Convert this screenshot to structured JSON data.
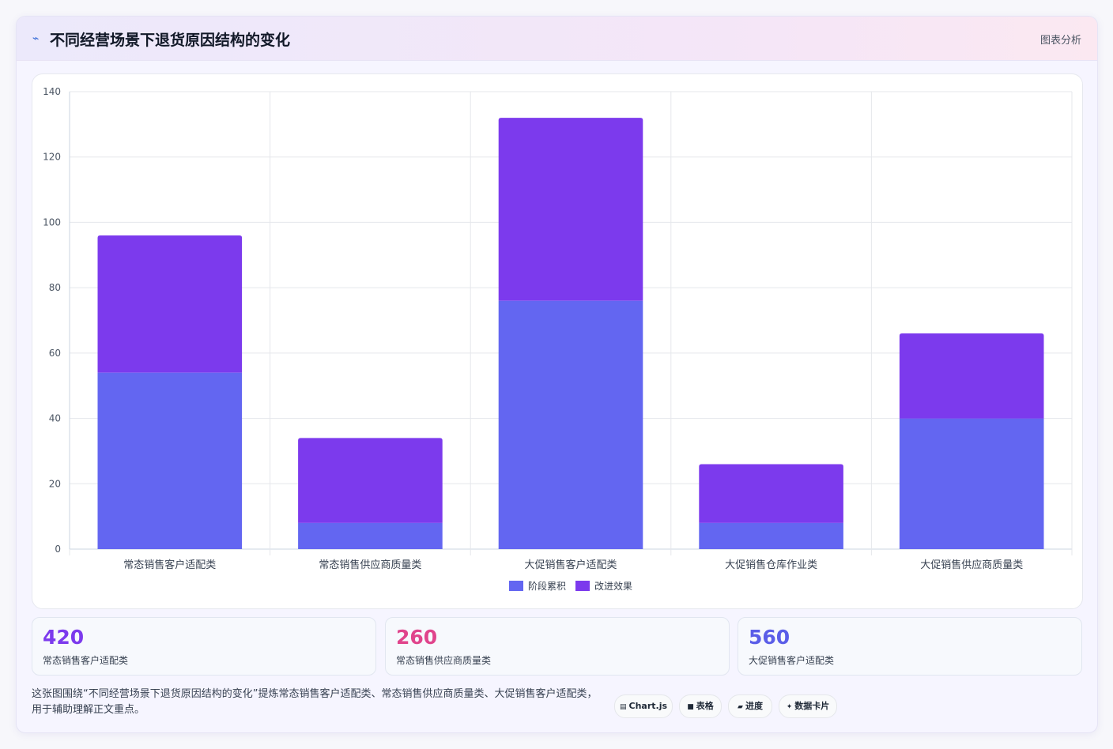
{
  "header": {
    "title": "不同经营场景下退货原因结构的变化",
    "icon": "chart-line-icon",
    "right_label": "图表分析"
  },
  "chart_data": {
    "type": "bar",
    "stacked": true,
    "categories": [
      "常态销售客户适配类",
      "常态销售供应商质量类",
      "大促销售客户适配类",
      "大促销售仓库作业类",
      "大促销售供应商质量类"
    ],
    "series": [
      {
        "name": "阶段累积",
        "color": "#6366f1",
        "values": [
          54,
          8,
          76,
          8,
          40
        ]
      },
      {
        "name": "改进效果",
        "color": "#7c3aed",
        "values": [
          42,
          26,
          56,
          18,
          26
        ]
      }
    ],
    "ylim": [
      0,
      140
    ],
    "yticks": [
      0,
      20,
      40,
      60,
      80,
      100,
      120,
      140
    ],
    "grid": true,
    "legend": "bottom"
  },
  "stats": [
    {
      "value": "420",
      "label": "常态销售客户适配类",
      "color": "#7c3aed"
    },
    {
      "value": "260",
      "label": "常态销售供应商质量类",
      "color": "#e0448c"
    },
    {
      "value": "560",
      "label": "大促销售客户适配类",
      "color": "#5b5ee8"
    }
  ],
  "footnote": "这张图围绕“不同经营场景下退货原因结构的变化”提炼常态销售客户适配类、常态销售供应商质量类、大促销售客户适配类，用于辅助理解正文重点。",
  "tags": [
    {
      "icon": "chart-icon",
      "glyph": "▤",
      "label": "Chart.js"
    },
    {
      "icon": "table-icon",
      "glyph": "■",
      "label": "表格"
    },
    {
      "icon": "progress-icon",
      "glyph": "▰",
      "label": "进度"
    },
    {
      "icon": "sparkle-icon",
      "glyph": "✦",
      "label": "数据卡片"
    }
  ]
}
